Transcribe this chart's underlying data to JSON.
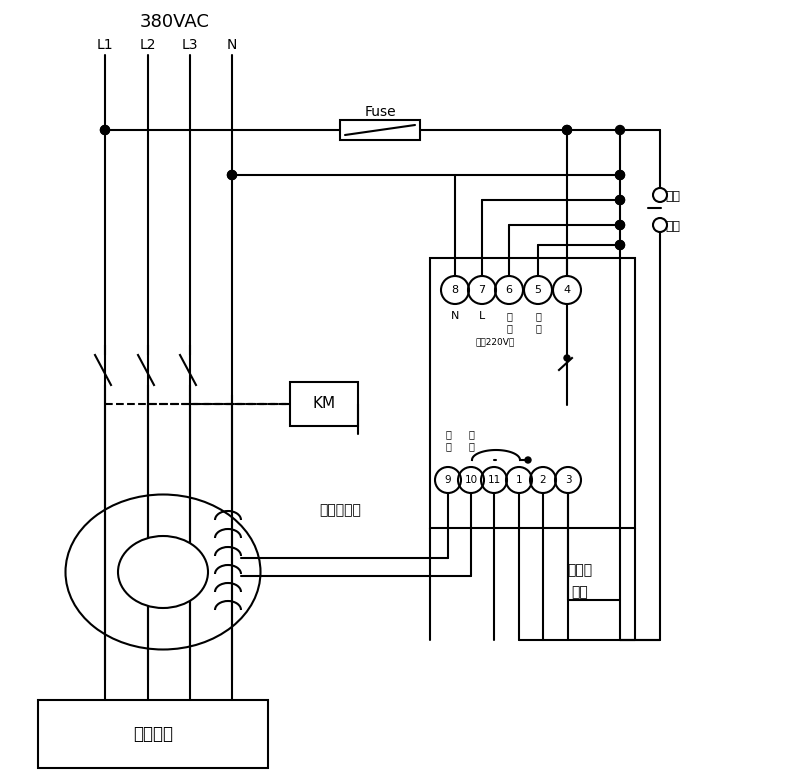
{
  "bg_color": "#ffffff",
  "lc": "#000000",
  "text_380vac": "380VAC",
  "labels_top": [
    "L1",
    "L2",
    "L3",
    "N"
  ],
  "text_Fuse": "Fuse",
  "text_KM": "KM",
  "text_zisuo": "自锁",
  "text_kaiguan": "开关",
  "text_linxu": "零序互感器",
  "text_jiesheng": "接声光",
  "text_baojing": "报警",
  "text_yonghu": "用户设备",
  "text_dianyuan": "电源220V～",
  "pin_top_labels": [
    "8",
    "7",
    "6",
    "5",
    "4"
  ],
  "pin_bot_labels": [
    "9",
    "10",
    "11",
    "1",
    "2",
    "3"
  ],
  "pin_top_sub": [
    "N",
    "L",
    "试\n验",
    "试\n验",
    ""
  ],
  "bot_sub": [
    "信\n号",
    "信\n号"
  ]
}
